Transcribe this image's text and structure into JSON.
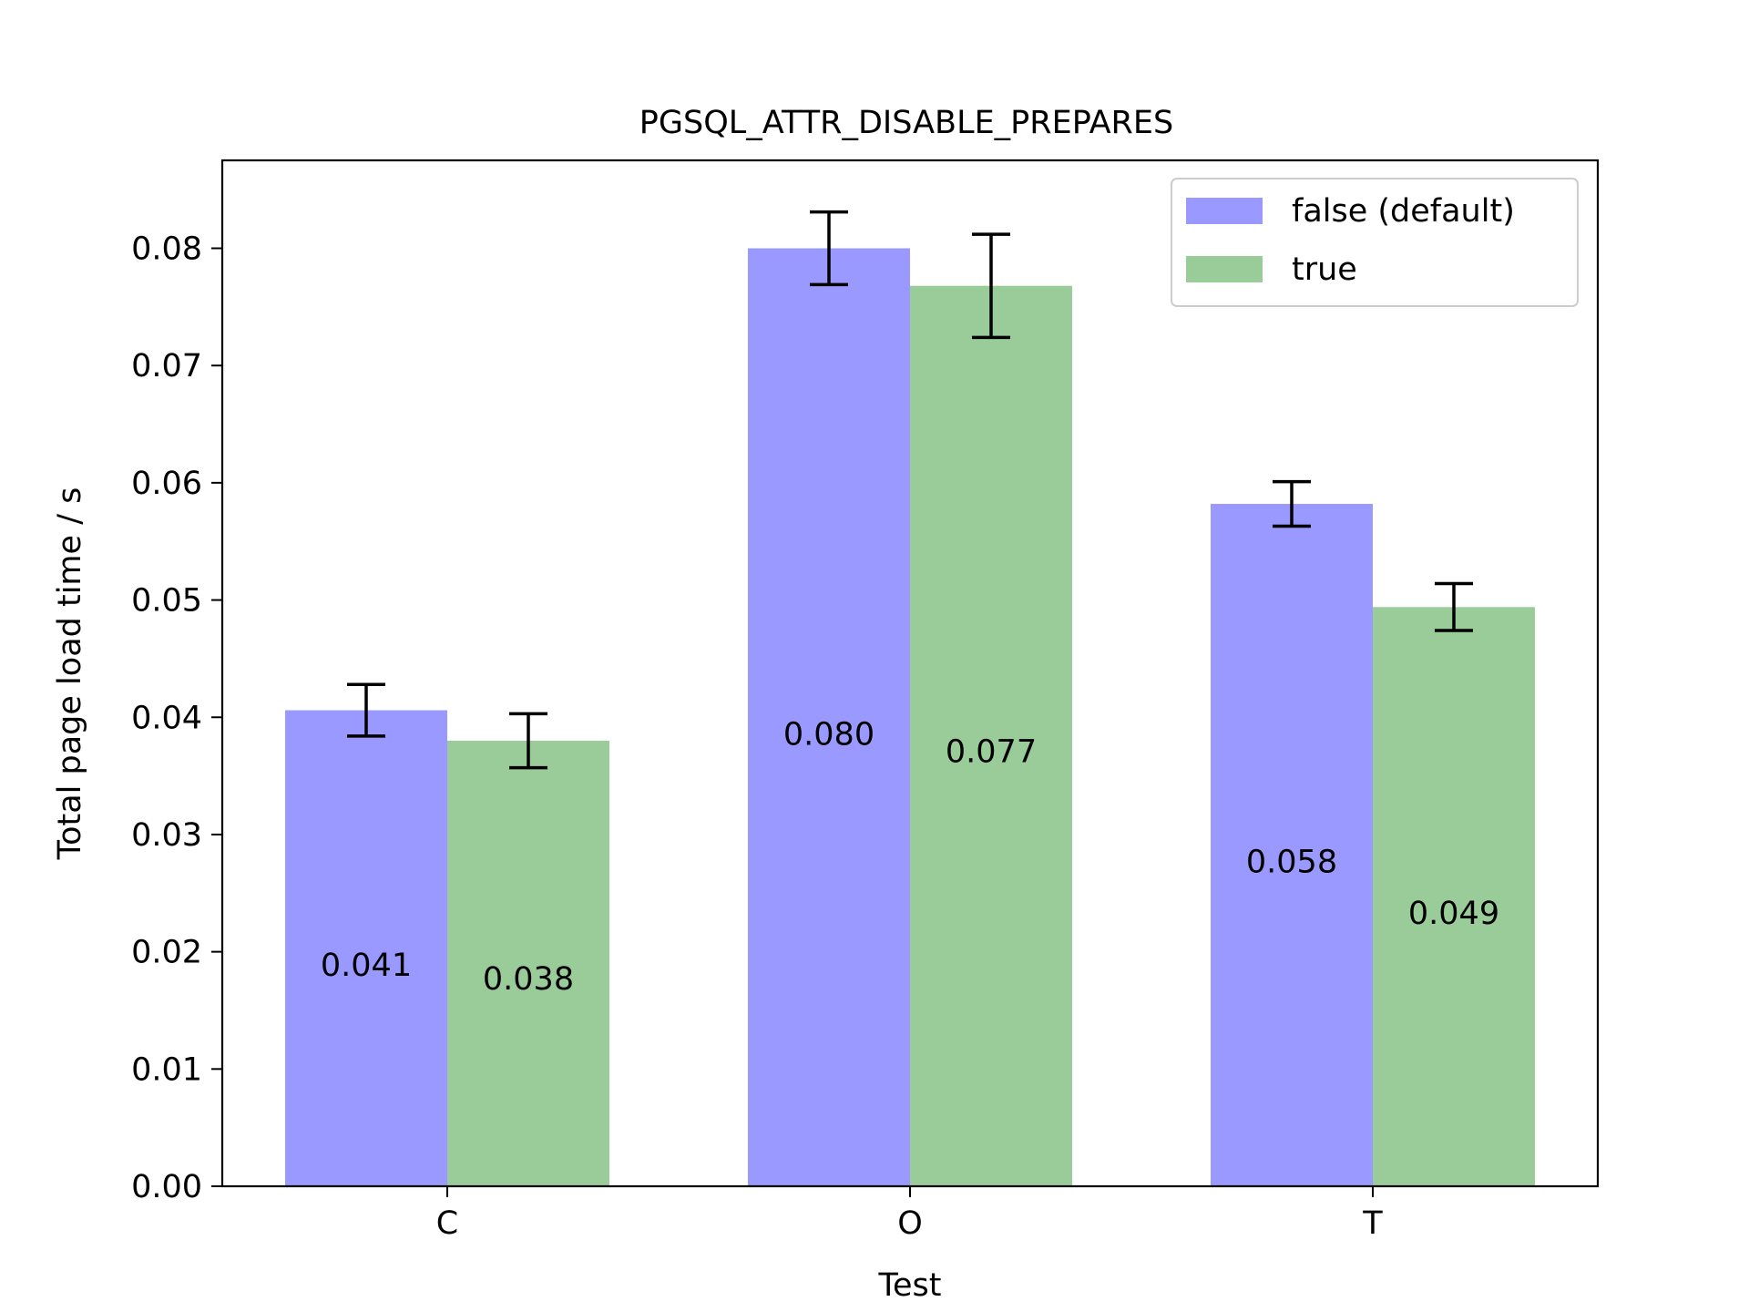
{
  "chart_data": {
    "type": "bar",
    "title": "PGSQL_ATTR_DISABLE_PREPARES",
    "xlabel": "Test",
    "ylabel": "Total page load time / s",
    "categories": [
      "C",
      "O",
      "T"
    ],
    "ylim": [
      0,
      0.0875
    ],
    "yticks": [
      0.0,
      0.01,
      0.02,
      0.03,
      0.04,
      0.05,
      0.06,
      0.07,
      0.08
    ],
    "ytick_labels": [
      "0.00",
      "0.01",
      "0.02",
      "0.03",
      "0.04",
      "0.05",
      "0.06",
      "0.07",
      "0.08"
    ],
    "grid": false,
    "legend_position": "top-right",
    "series": [
      {
        "name": "false (default)",
        "color": "#9999ff",
        "values": [
          0.0406,
          0.08,
          0.0582
        ],
        "errors": [
          0.0022,
          0.0031,
          0.0019
        ],
        "value_labels": [
          "0.041",
          "0.080",
          "0.058"
        ],
        "label_y": [
          0.0189,
          0.0386,
          0.0277
        ]
      },
      {
        "name": "true",
        "color": "#99cc99",
        "values": [
          0.038,
          0.0768,
          0.0494
        ],
        "errors": [
          0.0023,
          0.0044,
          0.002
        ],
        "value_labels": [
          "0.038",
          "0.077",
          "0.049"
        ],
        "label_y": [
          0.0177,
          0.0371,
          0.0233
        ]
      }
    ]
  }
}
